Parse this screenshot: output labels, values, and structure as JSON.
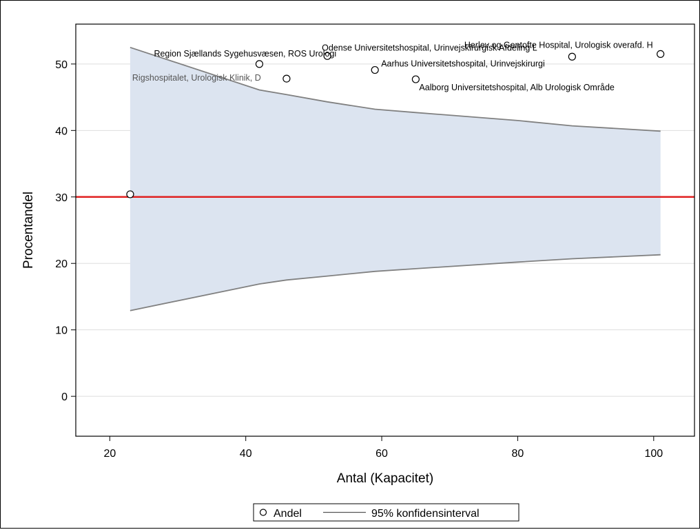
{
  "chart_data": {
    "type": "scatter",
    "xlabel": "Antal (Kapacitet)",
    "ylabel": "Procentandel",
    "xlim": [
      15,
      106
    ],
    "ylim": [
      -6,
      56
    ],
    "x_ticks": [
      20,
      40,
      60,
      80,
      100
    ],
    "y_ticks": [
      0,
      10,
      20,
      30,
      40,
      50
    ],
    "grid": "horizontal",
    "reference_line": {
      "y": 30,
      "color": "#e02020"
    },
    "series": [
      {
        "name": "Andel",
        "marker": "open-circle",
        "points": [
          {
            "x": 23,
            "y": 30.4,
            "label": ""
          },
          {
            "x": 42,
            "y": 50.0,
            "label": "Region Sjællands Sygehusvæsen, ROS Urologi"
          },
          {
            "x": 46,
            "y": 47.8,
            "label": "Rigshospitalet, Urologisk Klinik, D"
          },
          {
            "x": 52,
            "y": 51.2,
            "label": "Odense Universitetshospital, Urinvejskirurgisk Afdeling L"
          },
          {
            "x": 59,
            "y": 49.1,
            "label": "Aarhus Universitetshospital, Urinvejskirurgi"
          },
          {
            "x": 65,
            "y": 47.7,
            "label": "Aalborg Universitetshospital, Alb Urologisk Område"
          },
          {
            "x": 88,
            "y": 51.1,
            "label": ""
          },
          {
            "x": 101,
            "y": 51.5,
            "label": "Herlev og Gentofte Hospital, Urologisk overafd. H"
          }
        ]
      },
      {
        "name": "95% konfidensinterval",
        "type": "band",
        "x": [
          23,
          42,
          46,
          52,
          59,
          65,
          80,
          88,
          101
        ],
        "upper": [
          52.5,
          46.1,
          45.4,
          44.3,
          43.2,
          42.7,
          41.5,
          40.7,
          39.9
        ],
        "lower": [
          12.9,
          16.9,
          17.5,
          18.1,
          18.8,
          19.2,
          20.2,
          20.7,
          21.3
        ]
      }
    ],
    "colors": {
      "band_fill": "#dce4f0",
      "band_line": "#808080",
      "grid": "#dedede"
    },
    "legend": {
      "position": "bottom",
      "items": [
        "Andel",
        "95% konfidensinterval"
      ]
    }
  }
}
